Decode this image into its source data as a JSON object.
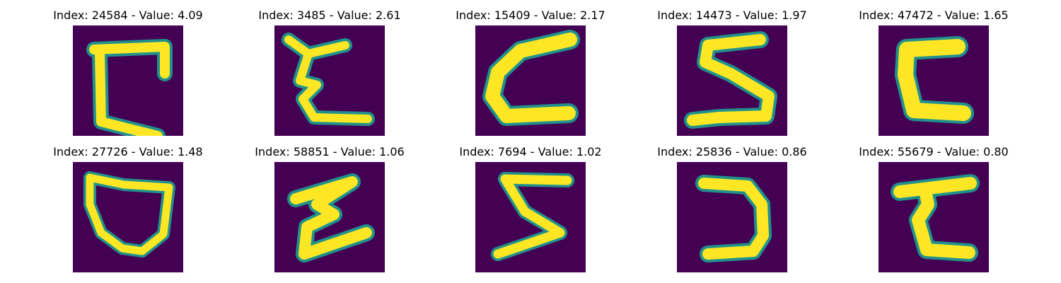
{
  "figure": {
    "colormap": "viridis",
    "background_color": "#440154",
    "stroke_color": "#fde725",
    "edge_color": "#21918c",
    "panels": [
      {
        "title": "Index: 24584 - Value: 4.09",
        "glyph": "glyph-1"
      },
      {
        "title": "Index: 3485 - Value: 2.61",
        "glyph": "glyph-2"
      },
      {
        "title": "Index: 15409 - Value: 2.17",
        "glyph": "glyph-3"
      },
      {
        "title": "Index: 14473 - Value: 1.97",
        "glyph": "glyph-4"
      },
      {
        "title": "Index: 47472 - Value: 1.65",
        "glyph": "glyph-5"
      },
      {
        "title": "Index: 27726 - Value: 1.48",
        "glyph": "glyph-6"
      },
      {
        "title": "Index: 58851 - Value: 1.06",
        "glyph": "glyph-7"
      },
      {
        "title": "Index: 7694 - Value: 1.02",
        "glyph": "glyph-8"
      },
      {
        "title": "Index: 25836 - Value: 0.86",
        "glyph": "glyph-9"
      },
      {
        "title": "Index: 55679 - Value: 0.80",
        "glyph": "glyph-10"
      }
    ]
  }
}
